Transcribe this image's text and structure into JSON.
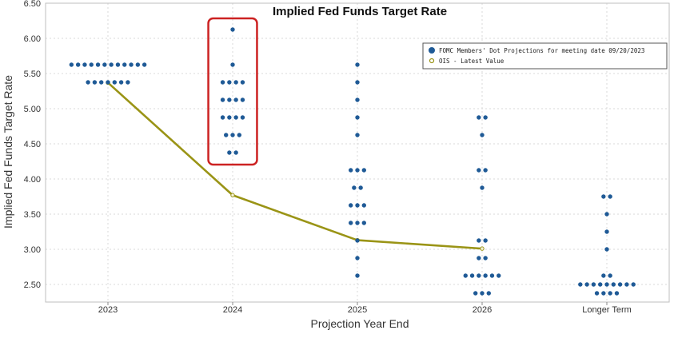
{
  "chart_data": {
    "type": "scatter",
    "title": "Implied Fed Funds Target Rate",
    "xlabel": "Projection Year End",
    "ylabel": "Implied Fed Funds Target Rate",
    "categories": [
      "2023",
      "2024",
      "2025",
      "2026",
      "Longer Term"
    ],
    "ylim": [
      2.25,
      6.5
    ],
    "yticks": [
      "2.50",
      "3.00",
      "3.50",
      "4.00",
      "4.50",
      "5.00",
      "5.50",
      "6.00",
      "6.50"
    ],
    "grid": true,
    "legend_position": "top-right",
    "series": [
      {
        "name": "FOMC Members' Dot Projections for meeting date 09/20/2023",
        "kind": "dots",
        "color": "#1f5a96",
        "values": [
          {
            "category": "2023",
            "points": [
              {
                "y": 5.625,
                "count": 12
              },
              {
                "y": 5.375,
                "count": 7
              }
            ]
          },
          {
            "category": "2024",
            "points": [
              {
                "y": 6.125,
                "count": 1
              },
              {
                "y": 5.625,
                "count": 1
              },
              {
                "y": 5.375,
                "count": 4
              },
              {
                "y": 5.125,
                "count": 4
              },
              {
                "y": 4.875,
                "count": 4
              },
              {
                "y": 4.625,
                "count": 3
              },
              {
                "y": 4.375,
                "count": 2
              }
            ]
          },
          {
            "category": "2025",
            "points": [
              {
                "y": 5.625,
                "count": 1
              },
              {
                "y": 5.375,
                "count": 1
              },
              {
                "y": 5.125,
                "count": 1
              },
              {
                "y": 4.875,
                "count": 1
              },
              {
                "y": 4.625,
                "count": 1
              },
              {
                "y": 4.125,
                "count": 3
              },
              {
                "y": 3.875,
                "count": 2
              },
              {
                "y": 3.625,
                "count": 3
              },
              {
                "y": 3.375,
                "count": 3
              },
              {
                "y": 3.125,
                "count": 1
              },
              {
                "y": 2.875,
                "count": 1
              },
              {
                "y": 2.625,
                "count": 1
              }
            ]
          },
          {
            "category": "2026",
            "points": [
              {
                "y": 4.875,
                "count": 2
              },
              {
                "y": 4.625,
                "count": 1
              },
              {
                "y": 4.125,
                "count": 2
              },
              {
                "y": 3.875,
                "count": 1
              },
              {
                "y": 3.125,
                "count": 2
              },
              {
                "y": 2.875,
                "count": 2
              },
              {
                "y": 2.625,
                "count": 6
              },
              {
                "y": 2.375,
                "count": 3
              }
            ]
          },
          {
            "category": "Longer Term",
            "points": [
              {
                "y": 3.75,
                "count": 2
              },
              {
                "y": 3.5,
                "count": 1
              },
              {
                "y": 3.25,
                "count": 1
              },
              {
                "y": 3.0,
                "count": 1
              },
              {
                "y": 2.625,
                "count": 2
              },
              {
                "y": 2.5,
                "count": 9
              },
              {
                "y": 2.375,
                "count": 4
              }
            ]
          }
        ]
      },
      {
        "name": "OIS - Latest Value",
        "kind": "line",
        "color": "#9a9416",
        "values": [
          {
            "category": "2023",
            "y": 5.37
          },
          {
            "category": "2024",
            "y": 3.77
          },
          {
            "category": "2025",
            "y": 3.13
          },
          {
            "category": "2026",
            "y": 3.01
          }
        ]
      }
    ],
    "annotations": [
      {
        "type": "highlight-box",
        "target": "2024",
        "color": "#cc2222"
      }
    ]
  }
}
